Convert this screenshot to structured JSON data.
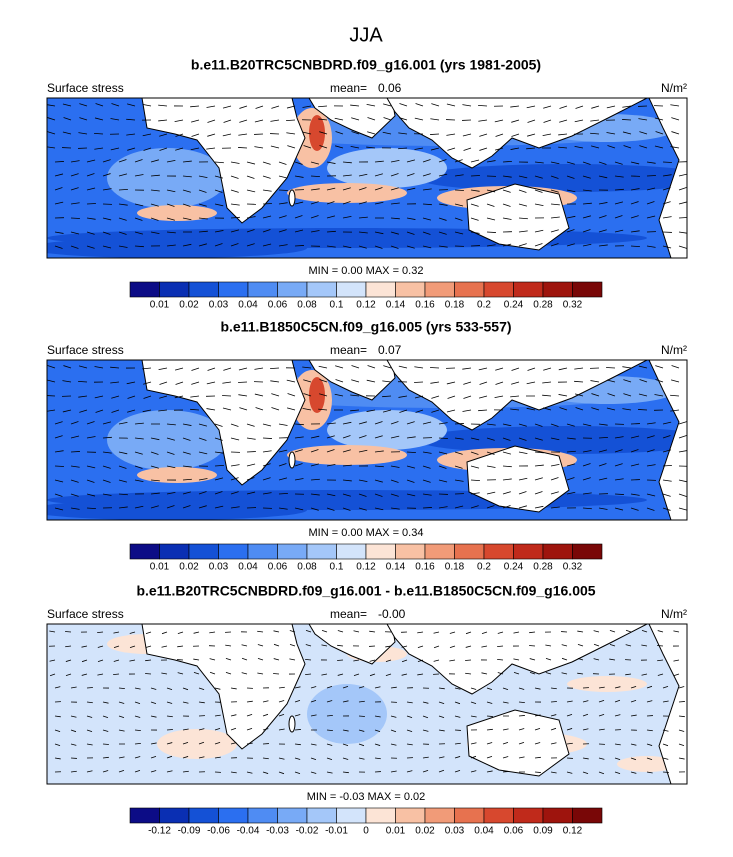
{
  "title": "JJA",
  "colorbar_colors": [
    "#0c0c86",
    "#0a2fb3",
    "#1451d6",
    "#2b6ff0",
    "#4f8cf3",
    "#78aaf6",
    "#a4c7f9",
    "#d3e4fb",
    "#fce4d6",
    "#f8c1a4",
    "#f19b78",
    "#e7724f",
    "#d7482e",
    "#c02a1b",
    "#9e140d",
    "#790707"
  ],
  "panels": [
    {
      "title": "b.e11.B20TRC5CNBDRD.f09_g16.001 (yrs 1981-2005)",
      "left_label": "Surface stress",
      "mean_label": "mean=",
      "mean": "0.06",
      "units": "N/m²",
      "stats": "MIN =  0.00 MAX =  0.32",
      "colorbar_labels": [
        "0.01",
        "0.02",
        "0.03",
        "0.04",
        "0.06",
        "0.08",
        "0.1",
        "0.12",
        "0.14",
        "0.16",
        "0.18",
        "0.2",
        "0.24",
        "0.28",
        "0.32"
      ]
    },
    {
      "title": "b.e11.B1850C5CN.f09_g16.005 (yrs 533-557)",
      "left_label": "Surface stress",
      "mean_label": "mean=",
      "mean": "0.07",
      "units": "N/m²",
      "stats": "MIN =  0.00 MAX =  0.34",
      "colorbar_labels": [
        "0.01",
        "0.02",
        "0.03",
        "0.04",
        "0.06",
        "0.08",
        "0.1",
        "0.12",
        "0.14",
        "0.16",
        "0.18",
        "0.2",
        "0.24",
        "0.28",
        "0.32"
      ]
    },
    {
      "title": "b.e11.B20TRC5CNBDRD.f09_g16.001 - b.e11.B1850C5CN.f09_g16.005",
      "left_label": "Surface stress",
      "mean_label": "mean=",
      "mean": "-0.00",
      "units": "N/m²",
      "stats": "MIN = -0.03 MAX =  0.02",
      "colorbar_labels": [
        "-0.12",
        "-0.09",
        "-0.06",
        "-0.04",
        "-0.03",
        "-0.02",
        "-0.01",
        "0",
        "0.01",
        "0.02",
        "0.03",
        "0.04",
        "0.06",
        "0.09",
        "0.12"
      ]
    }
  ]
}
